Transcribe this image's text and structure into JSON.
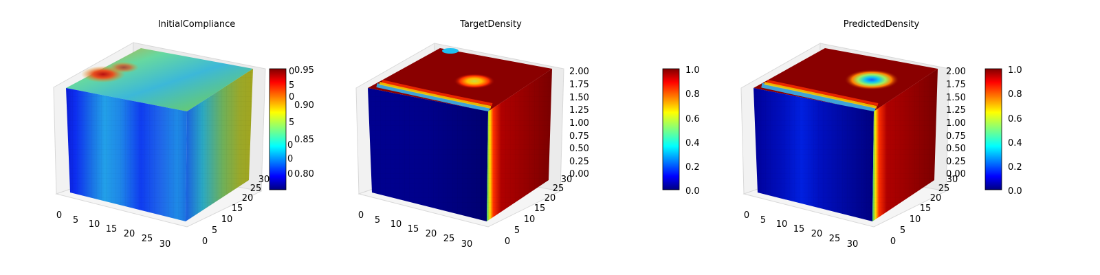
{
  "chart_data": [
    {
      "type": "3d-voxel",
      "title": "InitialCompliance",
      "x_ticks": [
        "0",
        "5",
        "10",
        "15",
        "20",
        "25",
        "30"
      ],
      "y_ticks": [
        "0",
        "5",
        "10",
        "15",
        "20",
        "25",
        "30"
      ],
      "z_ticks": [
        "0",
        "0",
        "0",
        "0",
        "0",
        "0",
        "0"
      ],
      "xlim": [
        0,
        32
      ],
      "ylim": [
        0,
        32
      ],
      "zlim": [
        0,
        2
      ],
      "colormap": "jet",
      "colorbar": {
        "ticks": [
          "0.80",
          "0.85",
          "0.90",
          "0.95"
        ],
        "min": 0.78,
        "max": 0.96,
        "overlap_labels": [
          "0",
          "5",
          "0",
          "5",
          "0",
          "0",
          "0"
        ]
      },
      "grid": true
    },
    {
      "type": "3d-voxel",
      "title": "TargetDensity",
      "x_ticks": [
        "0",
        "5",
        "10",
        "15",
        "20",
        "25",
        "30"
      ],
      "y_ticks": [
        "0",
        "5",
        "10",
        "15",
        "20",
        "25",
        "30"
      ],
      "z_ticks": [
        "0.00",
        "0.25",
        "0.50",
        "0.75",
        "1.00",
        "1.25",
        "1.50",
        "1.75",
        "2.00"
      ],
      "xlim": [
        0,
        32
      ],
      "ylim": [
        0,
        32
      ],
      "zlim": [
        0,
        2
      ],
      "colormap": "jet",
      "colorbar": {
        "ticks": [
          "0.0",
          "0.2",
          "0.4",
          "0.6",
          "0.8",
          "1.0"
        ],
        "min": 0.0,
        "max": 1.0
      },
      "grid": true
    },
    {
      "type": "3d-voxel",
      "title": "PredictedDensity",
      "x_ticks": [
        "0",
        "5",
        "10",
        "15",
        "20",
        "25",
        "30"
      ],
      "y_ticks": [
        "0",
        "5",
        "10",
        "15",
        "20",
        "25",
        "30"
      ],
      "z_ticks": [
        "0.00",
        "0.25",
        "0.50",
        "0.75",
        "1.00",
        "1.25",
        "1.50",
        "1.75",
        "2.00"
      ],
      "xlim": [
        0,
        32
      ],
      "ylim": [
        0,
        32
      ],
      "zlim": [
        0,
        2
      ],
      "colormap": "jet",
      "colorbar": {
        "ticks": [
          "0.0",
          "0.2",
          "0.4",
          "0.6",
          "0.8",
          "1.0"
        ],
        "min": 0.0,
        "max": 1.0
      },
      "grid": true
    }
  ]
}
